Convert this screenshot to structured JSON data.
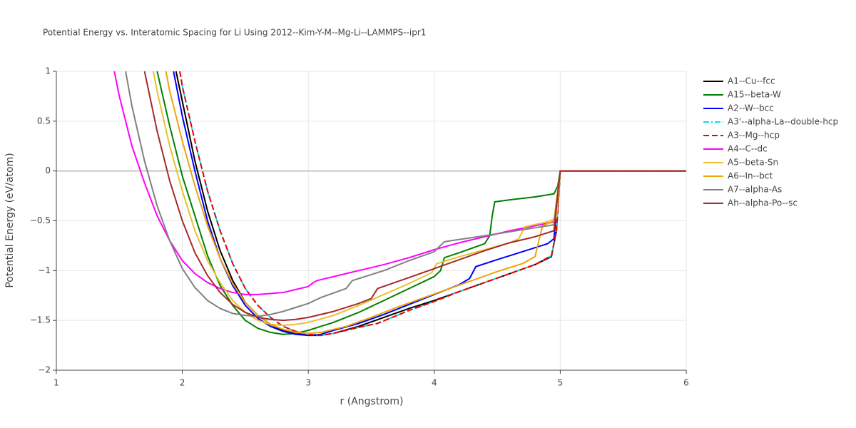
{
  "chart_data": {
    "type": "line",
    "title": "Potential Energy vs. Interatomic Spacing for Li Using 2012--Kim-Y-M--Mg-Li--LAMMPS--ipr1",
    "x_label": "r (Angstrom)",
    "y_label": "Potential Energy (eV/atom)",
    "xlim": [
      1,
      6
    ],
    "ylim": [
      -2,
      1
    ],
    "xticks": [
      1,
      2,
      3,
      4,
      5,
      6
    ],
    "yticks": [
      {
        "value": -2,
        "label": "−2"
      },
      {
        "value": -1.5,
        "label": "−1.5"
      },
      {
        "value": -1,
        "label": "−1"
      },
      {
        "value": -0.5,
        "label": "−0.5"
      },
      0,
      0.5,
      1
    ],
    "grid": true,
    "legend": "right",
    "series": [
      {
        "name": "A1--Cu--fcc",
        "color": "#000000",
        "dash": "solid",
        "x": [
          1.95,
          2.0,
          2.1,
          2.2,
          2.3,
          2.4,
          2.5,
          2.6,
          2.7,
          2.8,
          2.9,
          3.0,
          3.1,
          3.2,
          3.4,
          3.6,
          3.8,
          4.0,
          4.2,
          4.4,
          4.6,
          4.8,
          4.93,
          4.97,
          5.0,
          6.0
        ],
        "values": [
          1,
          0.7,
          0.1,
          -0.4,
          -0.8,
          -1.1,
          -1.32,
          -1.45,
          -1.54,
          -1.6,
          -1.63,
          -1.65,
          -1.65,
          -1.63,
          -1.56,
          -1.47,
          -1.38,
          -1.3,
          -1.21,
          -1.12,
          -1.03,
          -0.94,
          -0.86,
          -0.6,
          0,
          0
        ]
      },
      {
        "name": "A15--beta-W",
        "color": "#008000",
        "dash": "solid",
        "x": [
          1.8,
          1.9,
          2.0,
          2.1,
          2.2,
          2.3,
          2.4,
          2.5,
          2.6,
          2.7,
          2.8,
          2.9,
          3.0,
          3.2,
          3.4,
          3.6,
          3.8,
          4.0,
          4.05,
          4.08,
          4.2,
          4.4,
          4.44,
          4.46,
          4.48,
          4.6,
          4.8,
          4.95,
          4.98,
          5.0,
          6.0
        ],
        "values": [
          1,
          0.45,
          -0.05,
          -0.45,
          -0.85,
          -1.15,
          -1.35,
          -1.5,
          -1.58,
          -1.62,
          -1.64,
          -1.63,
          -1.6,
          -1.52,
          -1.42,
          -1.3,
          -1.18,
          -1.06,
          -1.0,
          -0.87,
          -0.82,
          -0.73,
          -0.65,
          -0.45,
          -0.31,
          -0.29,
          -0.26,
          -0.23,
          -0.15,
          0,
          0
        ]
      },
      {
        "name": "A2--W--bcc",
        "color": "#0000ff",
        "dash": "solid",
        "x": [
          1.93,
          2.0,
          2.1,
          2.2,
          2.3,
          2.4,
          2.5,
          2.6,
          2.7,
          2.8,
          2.9,
          3.0,
          3.1,
          3.2,
          3.4,
          3.6,
          3.8,
          4.0,
          4.2,
          4.28,
          4.33,
          4.5,
          4.7,
          4.9,
          4.95,
          5.0,
          6.0
        ],
        "values": [
          1,
          0.55,
          0.0,
          -0.5,
          -0.88,
          -1.15,
          -1.35,
          -1.48,
          -1.56,
          -1.61,
          -1.64,
          -1.65,
          -1.64,
          -1.6,
          -1.53,
          -1.44,
          -1.34,
          -1.24,
          -1.14,
          -1.08,
          -0.96,
          -0.89,
          -0.81,
          -0.73,
          -0.68,
          0,
          0
        ]
      },
      {
        "name": "A3'--alpha-La--double-hcp",
        "color": "#00e5ee",
        "dash": "dashdot",
        "x": [
          1.98,
          2.0,
          2.1,
          2.2,
          2.3,
          2.4,
          2.5,
          2.6,
          2.7,
          2.8,
          2.9,
          3.0,
          3.1,
          3.2,
          3.4,
          3.55,
          3.8,
          4.0,
          4.2,
          4.4,
          4.6,
          4.8,
          4.93,
          4.97,
          5.0,
          6.0
        ],
        "values": [
          1,
          0.85,
          0.3,
          -0.2,
          -0.6,
          -0.93,
          -1.18,
          -1.35,
          -1.47,
          -1.56,
          -1.61,
          -1.64,
          -1.65,
          -1.63,
          -1.57,
          -1.53,
          -1.4,
          -1.31,
          -1.21,
          -1.12,
          -1.03,
          -0.94,
          -0.85,
          -0.6,
          0,
          0
        ]
      },
      {
        "name": "A3--Mg--hcp",
        "color": "#ee0000",
        "dash": "dash",
        "x": [
          1.98,
          2.0,
          2.1,
          2.2,
          2.3,
          2.4,
          2.5,
          2.6,
          2.7,
          2.8,
          2.9,
          3.0,
          3.1,
          3.2,
          3.4,
          3.55,
          3.8,
          4.0,
          4.2,
          4.4,
          4.6,
          4.8,
          4.93,
          4.97,
          5.0,
          6.0
        ],
        "values": [
          1,
          0.85,
          0.3,
          -0.2,
          -0.6,
          -0.93,
          -1.18,
          -1.35,
          -1.47,
          -1.56,
          -1.61,
          -1.64,
          -1.65,
          -1.63,
          -1.57,
          -1.53,
          -1.4,
          -1.31,
          -1.21,
          -1.12,
          -1.03,
          -0.94,
          -0.85,
          -0.6,
          0,
          0
        ]
      },
      {
        "name": "A4--C--dc",
        "color": "#ff00ff",
        "dash": "solid",
        "x": [
          1.46,
          1.5,
          1.6,
          1.7,
          1.8,
          1.9,
          2.0,
          2.1,
          2.2,
          2.3,
          2.4,
          2.5,
          2.6,
          2.8,
          2.9,
          3.0,
          3.04,
          3.07,
          3.3,
          3.6,
          3.8,
          4.0,
          4.2,
          4.4,
          4.6,
          4.8,
          4.96,
          5.0,
          6.0
        ],
        "values": [
          1,
          0.75,
          0.25,
          -0.12,
          -0.45,
          -0.7,
          -0.9,
          -1.03,
          -1.12,
          -1.18,
          -1.22,
          -1.24,
          -1.24,
          -1.22,
          -1.19,
          -1.16,
          -1.12,
          -1.1,
          -1.03,
          -0.94,
          -0.87,
          -0.79,
          -0.72,
          -0.66,
          -0.6,
          -0.55,
          -0.51,
          0,
          0
        ]
      },
      {
        "name": "A5--beta-Sn",
        "color": "#e6c232",
        "dash": "solid",
        "x": [
          1.77,
          1.8,
          1.9,
          2.0,
          2.1,
          2.2,
          2.3,
          2.4,
          2.5,
          2.6,
          2.7,
          2.8,
          2.9,
          3.0,
          3.2,
          3.4,
          3.6,
          3.8,
          3.98,
          4.02,
          4.2,
          4.4,
          4.6,
          4.67,
          4.72,
          4.9,
          4.97,
          5.0,
          6.0
        ],
        "values": [
          1,
          0.8,
          0.25,
          -0.2,
          -0.6,
          -0.9,
          -1.12,
          -1.3,
          -1.42,
          -1.5,
          -1.54,
          -1.55,
          -1.54,
          -1.52,
          -1.45,
          -1.35,
          -1.24,
          -1.13,
          -1.02,
          -0.93,
          -0.86,
          -0.79,
          -0.72,
          -0.68,
          -0.56,
          -0.51,
          -0.47,
          0,
          0
        ]
      },
      {
        "name": "A6--In--bct",
        "color": "#f0a30a",
        "dash": "solid",
        "x": [
          1.87,
          1.9,
          2.0,
          2.1,
          2.2,
          2.3,
          2.4,
          2.5,
          2.6,
          2.7,
          2.8,
          2.9,
          3.0,
          3.1,
          3.3,
          3.5,
          3.7,
          3.9,
          4.1,
          4.3,
          4.5,
          4.7,
          4.8,
          4.83,
          4.86,
          4.95,
          5.0,
          6.0
        ],
        "values": [
          1,
          0.8,
          0.3,
          -0.15,
          -0.55,
          -0.88,
          -1.13,
          -1.32,
          -1.45,
          -1.54,
          -1.59,
          -1.62,
          -1.63,
          -1.62,
          -1.56,
          -1.47,
          -1.37,
          -1.28,
          -1.19,
          -1.1,
          -1.01,
          -0.93,
          -0.86,
          -0.7,
          -0.55,
          -0.5,
          0,
          0
        ]
      },
      {
        "name": "A7--alpha-As",
        "color": "#808080",
        "dash": "solid",
        "x": [
          1.55,
          1.6,
          1.7,
          1.8,
          1.9,
          2.0,
          2.1,
          2.2,
          2.3,
          2.4,
          2.5,
          2.6,
          2.7,
          2.8,
          2.9,
          3.0,
          3.05,
          3.1,
          3.3,
          3.35,
          3.6,
          3.8,
          4.0,
          4.08,
          4.4,
          4.7,
          4.95,
          5.0,
          6.0
        ],
        "values": [
          1,
          0.65,
          0.1,
          -0.35,
          -0.7,
          -0.98,
          -1.17,
          -1.3,
          -1.38,
          -1.43,
          -1.45,
          -1.46,
          -1.44,
          -1.41,
          -1.37,
          -1.33,
          -1.3,
          -1.27,
          -1.18,
          -1.1,
          -1.0,
          -0.9,
          -0.81,
          -0.71,
          -0.65,
          -0.59,
          -0.54,
          0,
          0
        ]
      },
      {
        "name": "Ah--alpha-Po--sc",
        "color": "#a52a2a",
        "dash": "solid",
        "x": [
          1.7,
          1.8,
          1.9,
          2.0,
          2.1,
          2.2,
          2.3,
          2.4,
          2.5,
          2.6,
          2.7,
          2.8,
          2.9,
          3.0,
          3.2,
          3.4,
          3.5,
          3.55,
          3.8,
          4.0,
          4.2,
          4.4,
          4.6,
          4.8,
          4.95,
          5.0,
          6.0
        ],
        "values": [
          1,
          0.4,
          -0.1,
          -0.5,
          -0.82,
          -1.05,
          -1.22,
          -1.34,
          -1.42,
          -1.47,
          -1.49,
          -1.5,
          -1.49,
          -1.47,
          -1.41,
          -1.33,
          -1.28,
          -1.18,
          -1.07,
          -0.98,
          -0.89,
          -0.8,
          -0.72,
          -0.66,
          -0.6,
          0,
          0
        ]
      }
    ]
  }
}
